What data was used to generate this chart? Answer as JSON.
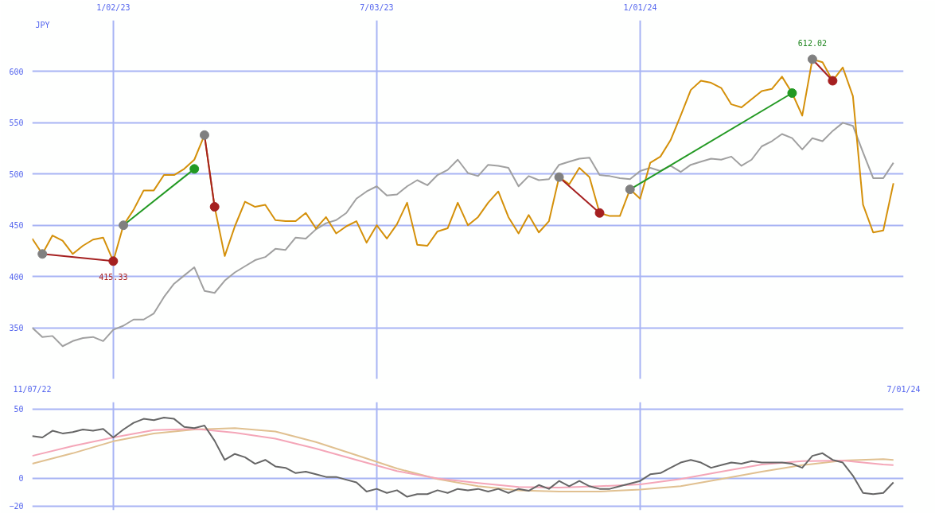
{
  "chart_data": [
    {
      "type": "line",
      "ylabel": "JPY",
      "x": [
        "2022-11-07",
        "2022-11-14",
        "2022-11-21",
        "2022-11-28",
        "2022-12-05",
        "2022-12-12",
        "2022-12-19",
        "2022-12-26",
        "2023-01-02",
        "2023-01-09",
        "2023-01-16",
        "2023-01-23",
        "2023-01-30",
        "2023-02-06",
        "2023-02-13",
        "2023-02-20",
        "2023-02-27",
        "2023-03-06",
        "2023-03-13",
        "2023-03-20",
        "2023-03-27",
        "2023-04-03",
        "2023-04-10",
        "2023-04-17",
        "2023-04-24",
        "2023-05-01",
        "2023-05-08",
        "2023-05-15",
        "2023-05-22",
        "2023-05-29",
        "2023-06-05",
        "2023-06-12",
        "2023-06-19",
        "2023-06-26",
        "2023-07-03",
        "2023-07-10",
        "2023-07-17",
        "2023-07-24",
        "2023-07-31",
        "2023-08-07",
        "2023-08-14",
        "2023-08-21",
        "2023-08-28",
        "2023-09-04",
        "2023-09-11",
        "2023-09-18",
        "2023-09-25",
        "2023-10-02",
        "2023-10-09",
        "2023-10-16",
        "2023-10-23",
        "2023-10-30",
        "2023-11-06",
        "2023-11-13",
        "2023-11-20",
        "2023-11-27",
        "2023-12-04",
        "2023-12-11",
        "2023-12-18",
        "2023-12-25",
        "2024-01-01",
        "2024-01-08",
        "2024-01-15",
        "2024-01-22",
        "2024-01-29",
        "2024-02-05",
        "2024-02-12",
        "2024-02-19",
        "2024-02-26",
        "2024-03-04",
        "2024-03-11",
        "2024-03-18",
        "2024-03-25",
        "2024-04-01",
        "2024-04-08",
        "2024-04-15",
        "2024-04-22",
        "2024-04-29",
        "2024-05-06",
        "2024-05-13",
        "2024-05-20",
        "2024-05-27",
        "2024-06-03",
        "2024-06-10",
        "2024-06-17",
        "2024-06-24"
      ],
      "series": [
        {
          "color": "#a0a0a0",
          "values": [
            350,
            341,
            342,
            332,
            337,
            340,
            341,
            337,
            348,
            352,
            358,
            358,
            364,
            380,
            393,
            401,
            409,
            386,
            384,
            396,
            404,
            410,
            416,
            419,
            427,
            426,
            438,
            437,
            446,
            452,
            455,
            462,
            476,
            483,
            488,
            479,
            480,
            488,
            494,
            489,
            499,
            504,
            514,
            501,
            498,
            509,
            508,
            506,
            488,
            498,
            494,
            495,
            509,
            512,
            515,
            516,
            499,
            498,
            496,
            495,
            503,
            506,
            503,
            508,
            502,
            509,
            512,
            515,
            514,
            517,
            508,
            514,
            527,
            532,
            539,
            535,
            524,
            535,
            532,
            542,
            550,
            547,
            521,
            496,
            496,
            511
          ]
        },
        {
          "color": "#d4900a",
          "values": [
            437,
            422,
            440,
            435,
            422,
            430,
            436,
            438,
            415,
            450,
            465,
            484,
            484,
            499,
            499,
            505,
            514,
            538,
            468,
            420,
            449,
            473,
            468,
            470,
            455,
            454,
            454,
            462,
            447,
            458,
            442,
            449,
            454,
            433,
            450,
            437,
            451,
            472,
            431,
            430,
            444,
            447,
            472,
            450,
            458,
            472,
            483,
            458,
            442,
            460,
            443,
            454,
            497,
            490,
            506,
            497,
            462,
            459,
            459,
            485,
            476,
            511,
            517,
            533,
            557,
            582,
            591,
            589,
            584,
            568,
            565,
            573,
            581,
            583,
            595,
            579,
            557,
            612,
            609,
            591,
            604,
            576,
            470,
            443,
            445,
            491
          ]
        },
        {
          "type": "line",
          "color": "#a52020",
          "x": [
            "2022-11-14",
            "2023-01-02"
          ],
          "values": [
            422,
            415
          ],
          "marker": "circle",
          "colors": [
            "#808080",
            "#a52020"
          ]
        },
        {
          "type": "line",
          "color": "#229922",
          "x": [
            "2023-01-09",
            "2023-02-27"
          ],
          "values": [
            450,
            505
          ],
          "marker": "circle",
          "colors": [
            "#808080",
            "#229922"
          ]
        },
        {
          "type": "line",
          "color": "#a52020",
          "x": [
            "2023-03-06",
            "2023-03-13"
          ],
          "values": [
            538,
            468
          ],
          "marker": "circle",
          "colors": [
            "#808080",
            "#a52020"
          ]
        },
        {
          "type": "line",
          "color": "#a52020",
          "x": [
            "2023-11-06",
            "2023-12-04"
          ],
          "values": [
            497,
            462
          ],
          "marker": "circle",
          "colors": [
            "#808080",
            "#a52020"
          ]
        },
        {
          "type": "line",
          "color": "#229922",
          "x": [
            "2023-12-25",
            "2024-04-15"
          ],
          "values": [
            485,
            579
          ],
          "marker": "circle",
          "colors": [
            "#808080",
            "#229922"
          ]
        },
        {
          "type": "line",
          "color": "#a52020",
          "x": [
            "2024-04-29",
            "2024-05-13"
          ],
          "values": [
            612,
            591
          ],
          "marker": "circle",
          "colors": [
            "#808080",
            "#a52020"
          ]
        }
      ],
      "annotations": [
        {
          "text": "612.02",
          "x": "2024-04-29",
          "y": 612
        },
        {
          "text": "415.33",
          "x": "2023-01-02",
          "y": 415
        }
      ],
      "xlim": [
        "2022-11-07",
        "2024-07-01"
      ],
      "xticks": [
        {
          "value": "2023-01-02",
          "label": "1/02/23"
        },
        {
          "value": "2023-07-03",
          "label": "7/03/23"
        },
        {
          "value": "2024-01-01",
          "label": "1/01/24"
        }
      ],
      "ylim": [
        300,
        650
      ],
      "yticks": [
        350,
        400,
        450,
        500,
        550,
        600
      ],
      "grid": true
    },
    {
      "type": "line",
      "x": [
        "2022-11-07",
        "2022-11-14",
        "2022-11-21",
        "2022-11-28",
        "2022-12-05",
        "2022-12-12",
        "2022-12-19",
        "2022-12-26",
        "2023-01-02",
        "2023-01-09",
        "2023-01-16",
        "2023-01-23",
        "2023-01-30",
        "2023-02-06",
        "2023-02-13",
        "2023-02-20",
        "2023-02-27",
        "2023-03-06",
        "2023-03-13",
        "2023-03-20",
        "2023-03-27",
        "2023-04-03",
        "2023-04-10",
        "2023-04-17",
        "2023-04-24",
        "2023-05-01",
        "2023-05-08",
        "2023-05-15",
        "2023-05-22",
        "2023-05-29",
        "2023-06-05",
        "2023-06-12",
        "2023-06-19",
        "2023-06-26",
        "2023-07-03",
        "2023-07-10",
        "2023-07-17",
        "2023-07-24",
        "2023-07-31",
        "2023-08-07",
        "2023-08-14",
        "2023-08-21",
        "2023-08-28",
        "2023-09-04",
        "2023-09-11",
        "2023-09-18",
        "2023-09-25",
        "2023-10-02",
        "2023-10-09",
        "2023-10-16",
        "2023-10-23",
        "2023-10-30",
        "2023-11-06",
        "2023-11-13",
        "2023-11-20",
        "2023-11-27",
        "2023-12-04",
        "2023-12-11",
        "2023-12-18",
        "2023-12-25",
        "2024-01-01",
        "2024-01-08",
        "2024-01-15",
        "2024-01-22",
        "2024-01-29",
        "2024-02-05",
        "2024-02-12",
        "2024-02-19",
        "2024-02-26",
        "2024-03-04",
        "2024-03-11",
        "2024-03-18",
        "2024-03-25",
        "2024-04-01",
        "2024-04-08",
        "2024-04-15",
        "2024-04-22",
        "2024-04-29",
        "2024-05-06",
        "2024-05-13",
        "2024-05-20",
        "2024-05-27",
        "2024-06-03",
        "2024-06-10",
        "2024-06-17",
        "2024-06-24"
      ],
      "series": [
        {
          "color": "#e0c090",
          "x": [
            "2022-11-07",
            "2022-12-05",
            "2023-01-02",
            "2023-01-30",
            "2023-02-27",
            "2023-03-27",
            "2023-04-24",
            "2023-05-22",
            "2023-06-19",
            "2023-07-17",
            "2023-08-14",
            "2023-09-11",
            "2023-10-09",
            "2023-11-06",
            "2023-12-04",
            "2024-01-01",
            "2024-01-29",
            "2024-02-26",
            "2024-03-25",
            "2024-04-22",
            "2024-05-20",
            "2024-06-17",
            "2024-06-24"
          ],
          "values": [
            10.5,
            18.1,
            26.7,
            32.4,
            35.2,
            36.2,
            33.8,
            26.2,
            16.7,
            7.1,
            -0.5,
            -5.7,
            -8.6,
            -9.5,
            -9.5,
            -8.1,
            -5.7,
            -0.5,
            4.8,
            9.5,
            12.9,
            13.8,
            13.3
          ]
        },
        {
          "color": "#f4a6b8",
          "x": [
            "2022-11-07",
            "2022-12-05",
            "2023-01-02",
            "2023-01-30",
            "2023-02-27",
            "2023-03-27",
            "2023-04-24",
            "2023-05-22",
            "2023-06-19",
            "2023-07-17",
            "2023-08-14",
            "2023-09-11",
            "2023-10-09",
            "2023-11-06",
            "2023-12-04",
            "2024-01-01",
            "2024-01-29",
            "2024-02-26",
            "2024-03-25",
            "2024-04-22",
            "2024-05-20",
            "2024-06-17",
            "2024-06-24"
          ],
          "values": [
            16.2,
            23.3,
            29.5,
            34.8,
            35.7,
            32.9,
            28.6,
            21.4,
            13.3,
            5.2,
            0,
            -3.3,
            -6.2,
            -6.7,
            -5.7,
            -4.3,
            -0.5,
            4.8,
            10,
            12.4,
            12.9,
            10,
            9.5
          ]
        },
        {
          "color": "#666666",
          "values": [
            30.5,
            29.5,
            34.3,
            32.4,
            33.3,
            35.2,
            34.3,
            35.7,
            29.5,
            35.2,
            40,
            42.9,
            41.9,
            43.8,
            42.9,
            37.1,
            36.2,
            38.1,
            27.1,
            13.3,
            17.6,
            15.2,
            10.5,
            13.3,
            8.6,
            7.6,
            3.8,
            4.8,
            2.9,
            1,
            1,
            -1,
            -2.9,
            -9.5,
            -7.6,
            -10.5,
            -8.6,
            -13.3,
            -11.4,
            -11.4,
            -8.6,
            -10.5,
            -7.6,
            -8.6,
            -7.6,
            -9.5,
            -7.6,
            -10.5,
            -7.6,
            -9,
            -4.8,
            -7.6,
            -1.9,
            -5.7,
            -1.9,
            -5.7,
            -7.6,
            -7.6,
            -5.7,
            -3.8,
            -1.9,
            2.9,
            3.8,
            7.6,
            11.4,
            13.3,
            11.4,
            7.6,
            9.5,
            11.4,
            10.5,
            12.4,
            11.4,
            11.4,
            11.4,
            10.5,
            7.6,
            16.2,
            18.1,
            13.3,
            11.4,
            1.9,
            -10.5,
            -11.4,
            -10.5,
            -2.9
          ]
        }
      ],
      "xlim": [
        "2022-11-07",
        "2024-07-01"
      ],
      "xticks": [
        {
          "value": "2022-11-07",
          "label": "11/07/22"
        },
        {
          "value": "2023-01-02",
          "label": null
        },
        {
          "value": "2023-07-03",
          "label": null
        },
        {
          "value": "2024-01-01",
          "label": null
        },
        {
          "value": "2024-07-01",
          "label": "7/01/24"
        }
      ],
      "ylim": [
        -23,
        55
      ],
      "yticks": [
        -20,
        0,
        50
      ],
      "grid": true
    }
  ]
}
